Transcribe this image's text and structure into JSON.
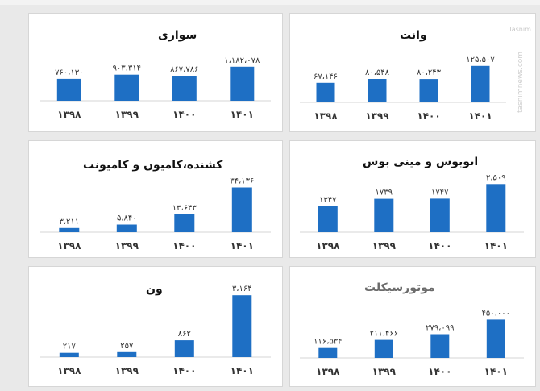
{
  "watermark": "Tasnim",
  "watermark_url": "tasnimnews.com",
  "chart_data": [
    {
      "type": "bar",
      "title": "سواری",
      "categories": [
        "۱۳۹۸",
        "۱۳۹۹",
        "۱۴۰۰",
        "۱۴۰۱"
      ],
      "values": [
        760130,
        903314,
        867786,
        1182078
      ],
      "value_labels": [
        "۷۶۰،۱۳۰",
        "۹۰۳،۳۱۴",
        "۸۶۷،۷۸۶",
        "۱،۱۸۲،۰۷۸"
      ],
      "ylim": [
        0,
        1400000
      ],
      "color": "#1e6fc4"
    },
    {
      "type": "bar",
      "title": "وانت",
      "categories": [
        "۱۳۹۸",
        "۱۳۹۹",
        "۱۴۰۰",
        "۱۴۰۱"
      ],
      "values": [
        67146,
        80548,
        80243,
        125507
      ],
      "value_labels": [
        "۶۷،۱۴۶",
        "۸۰،۵۴۸",
        "۸۰،۲۴۳",
        "۱۲۵،۵۰۷"
      ],
      "ylim": [
        0,
        150000
      ],
      "color": "#1e6fc4"
    },
    {
      "type": "bar",
      "title": "کشنده،کامیون و کامیونت",
      "categories": [
        "۱۳۹۸",
        "۱۳۹۹",
        "۱۴۰۰",
        "۱۴۰۱"
      ],
      "values": [
        3211,
        5840,
        13643,
        34136
      ],
      "value_labels": [
        "۳،۲۱۱",
        "۵،۸۴۰",
        "۱۳،۶۴۳",
        "۳۴،۱۳۶"
      ],
      "ylim": [
        0,
        40000
      ],
      "color": "#1e6fc4"
    },
    {
      "type": "bar",
      "title": "اتوبوس و مینی بوس",
      "categories": [
        "۱۳۹۸",
        "۱۳۹۹",
        "۱۴۰۰",
        "۱۴۰۱"
      ],
      "values": [
        1347,
        1739,
        1747,
        2509
      ],
      "value_labels": [
        "۱۳۴۷",
        "۱۷۳۹",
        "۱۷۴۷",
        "۲،۵۰۹"
      ],
      "ylim": [
        0,
        2900
      ],
      "color": "#1e6fc4"
    },
    {
      "type": "bar",
      "title": "ون",
      "categories": [
        "۱۳۹۸",
        "۱۳۹۹",
        "۱۴۰۰",
        "۱۴۰۱"
      ],
      "values": [
        217,
        257,
        862,
        3164
      ],
      "value_labels": [
        "۲۱۷",
        "۲۵۷",
        "۸۶۲",
        "۳،۱۶۴"
      ],
      "ylim": [
        0,
        3500
      ],
      "color": "#1e6fc4"
    },
    {
      "type": "bar",
      "title": "موتورسیکلت",
      "categories": [
        "۱۳۹۸",
        "۱۳۹۹",
        "۱۴۰۰",
        "۱۴۰۱"
      ],
      "values": [
        116534,
        211466,
        279099,
        450000
      ],
      "value_labels": [
        "۱۱۶،۵۳۴",
        "۲۱۱،۴۶۶",
        "۲۷۹،۰۹۹",
        "۴۵۰،۰۰۰"
      ],
      "ylim": [
        0,
        520000
      ],
      "color": "#1e6fc4"
    }
  ]
}
